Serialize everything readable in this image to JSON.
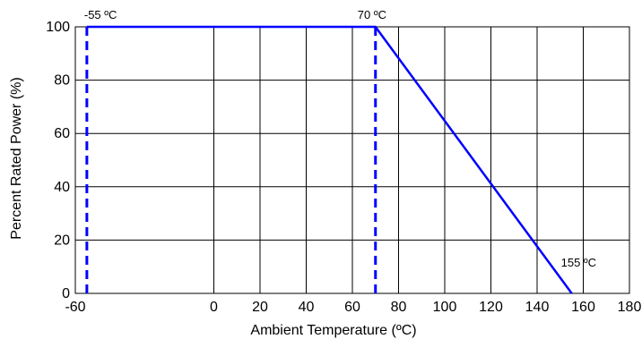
{
  "chart_data": {
    "type": "line",
    "title": "",
    "xlabel": "Ambient Temperature (ºC)",
    "ylabel": "Percent Rated Power (%)",
    "xlim": [
      -60,
      180
    ],
    "ylim": [
      0,
      100
    ],
    "x_ticks": [
      "-60",
      "0",
      "20",
      "40",
      "60",
      "80",
      "100",
      "120",
      "140",
      "160",
      "180"
    ],
    "y_ticks": [
      "0",
      "20",
      "40",
      "60",
      "80",
      "100"
    ],
    "grid": true,
    "legend": "none",
    "series": [
      {
        "x": [
          -55,
          70,
          155
        ],
        "y": [
          100,
          100,
          0
        ],
        "color": "#0000ff",
        "style": "solid"
      }
    ],
    "reference_lines": [
      {
        "x": -55,
        "y": [
          0,
          100
        ],
        "color": "#0000ff",
        "style": "dashed"
      },
      {
        "x": 70,
        "y": [
          0,
          100
        ],
        "color": "#0000ff",
        "style": "dashed"
      }
    ],
    "annotations": [
      {
        "text": "-55 ºC",
        "x": -55,
        "y": 100
      },
      {
        "text": "70 ºC",
        "x": 70,
        "y": 100
      },
      {
        "text": "155 ºC",
        "x": 155,
        "y": 0
      }
    ]
  }
}
